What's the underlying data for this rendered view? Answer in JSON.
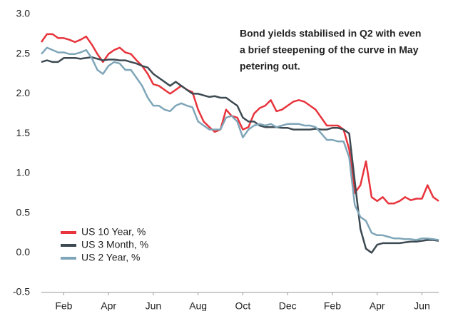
{
  "chart_data": {
    "type": "line",
    "annotation": [
      "Bond yields stabilised in Q2 with even",
      "a brief steepening of the curve in May",
      "petering out."
    ],
    "categories": [
      null,
      null,
      null,
      null,
      "Feb",
      null,
      null,
      null,
      null,
      null,
      null,
      null,
      "Apr",
      null,
      null,
      null,
      null,
      null,
      null,
      null,
      "Jun",
      null,
      null,
      null,
      null,
      null,
      null,
      null,
      "Aug",
      null,
      null,
      null,
      null,
      null,
      null,
      null,
      "Oct",
      null,
      null,
      null,
      null,
      null,
      null,
      null,
      "Dec",
      null,
      null,
      null,
      null,
      null,
      null,
      null,
      "Feb",
      null,
      null,
      null,
      null,
      null,
      null,
      null,
      "Apr",
      null,
      null,
      null,
      null,
      null,
      null,
      null,
      "Jun",
      null,
      null,
      null
    ],
    "series": [
      {
        "name": "US 10 Year, %",
        "color": "#e8343c",
        "values": [
          2.65,
          2.75,
          2.75,
          2.7,
          2.7,
          2.68,
          2.65,
          2.68,
          2.72,
          2.62,
          2.5,
          2.4,
          2.5,
          2.55,
          2.58,
          2.52,
          2.5,
          2.42,
          2.35,
          2.25,
          2.12,
          2.1,
          2.05,
          2.0,
          2.05,
          2.1,
          2.05,
          2.02,
          1.8,
          1.65,
          1.58,
          1.52,
          1.55,
          1.8,
          1.72,
          1.7,
          1.55,
          1.58,
          1.75,
          1.82,
          1.85,
          1.92,
          1.78,
          1.8,
          1.85,
          1.9,
          1.92,
          1.9,
          1.85,
          1.8,
          1.7,
          1.6,
          1.6,
          1.6,
          1.55,
          1.3,
          0.75,
          0.85,
          1.15,
          0.7,
          0.65,
          0.7,
          0.62,
          0.62,
          0.65,
          0.7,
          0.66,
          0.68,
          0.68,
          0.85,
          0.7,
          0.65
        ]
      },
      {
        "name": "US 3 Month, %",
        "color": "#3d4a52",
        "values": [
          2.4,
          2.42,
          2.4,
          2.4,
          2.45,
          2.45,
          2.45,
          2.44,
          2.45,
          2.46,
          2.44,
          2.42,
          2.43,
          2.43,
          2.42,
          2.42,
          2.4,
          2.38,
          2.35,
          2.33,
          2.25,
          2.2,
          2.15,
          2.1,
          2.15,
          2.1,
          2.05,
          2.0,
          2.0,
          1.98,
          1.96,
          1.97,
          1.95,
          1.95,
          1.9,
          1.85,
          1.7,
          1.65,
          1.65,
          1.6,
          1.58,
          1.58,
          1.58,
          1.57,
          1.57,
          1.55,
          1.55,
          1.55,
          1.55,
          1.56,
          1.55,
          1.55,
          1.57,
          1.57,
          1.55,
          1.5,
          0.9,
          0.3,
          0.05,
          0.0,
          0.1,
          0.12,
          0.12,
          0.12,
          0.12,
          0.13,
          0.14,
          0.14,
          0.15,
          0.16,
          0.16,
          0.15
        ]
      },
      {
        "name": "US 2 Year, %",
        "color": "#7fa6b8",
        "values": [
          2.5,
          2.58,
          2.55,
          2.52,
          2.52,
          2.5,
          2.5,
          2.52,
          2.55,
          2.45,
          2.3,
          2.25,
          2.35,
          2.4,
          2.38,
          2.3,
          2.3,
          2.2,
          2.1,
          1.95,
          1.85,
          1.85,
          1.8,
          1.78,
          1.85,
          1.88,
          1.85,
          1.83,
          1.65,
          1.6,
          1.55,
          1.55,
          1.55,
          1.7,
          1.72,
          1.65,
          1.45,
          1.55,
          1.6,
          1.62,
          1.6,
          1.62,
          1.58,
          1.6,
          1.62,
          1.62,
          1.62,
          1.6,
          1.6,
          1.58,
          1.5,
          1.42,
          1.42,
          1.4,
          1.4,
          1.2,
          0.6,
          0.45,
          0.4,
          0.25,
          0.22,
          0.22,
          0.2,
          0.18,
          0.18,
          0.17,
          0.17,
          0.16,
          0.18,
          0.18,
          0.17,
          0.16
        ]
      }
    ],
    "ylim": [
      -0.5,
      3.0
    ],
    "yticks": [
      -0.5,
      {
        "value": 0,
        "label": "0.0"
      },
      0.5,
      {
        "value": 1,
        "label": "1.0"
      },
      1.5,
      {
        "value": 2,
        "label": "2.0"
      },
      2.5,
      {
        "value": 3,
        "label": "3.0"
      }
    ],
    "grid": false,
    "legend": "lower left"
  }
}
